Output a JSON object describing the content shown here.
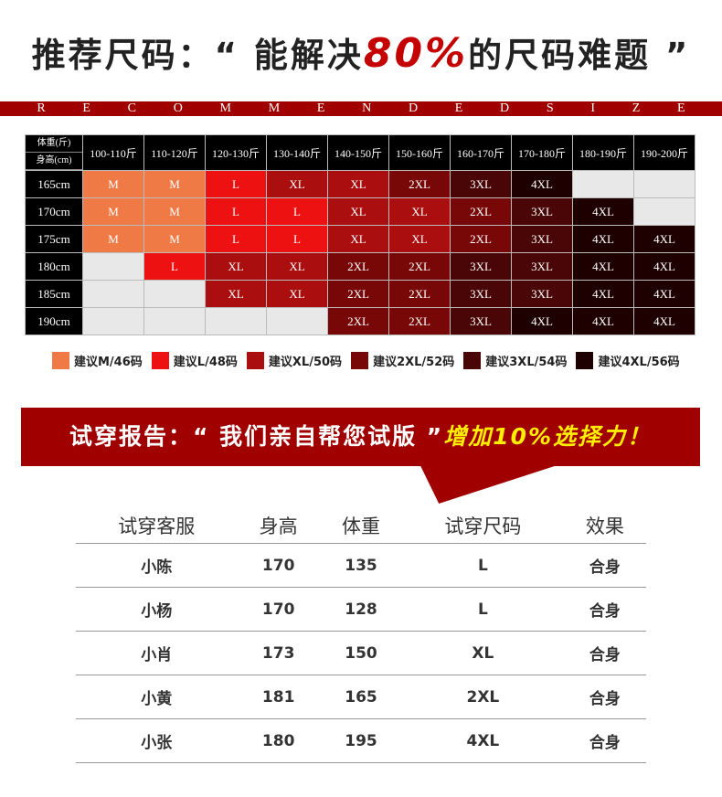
{
  "title": {
    "prefix": "推荐尺码：“ 能解决",
    "highlight": "80%",
    "suffix": "的尺码难题 ”"
  },
  "recommend_letters": [
    "R",
    "E",
    "C",
    "O",
    "M",
    "M",
    "E",
    "N",
    "D",
    "E",
    "D",
    "S",
    "I",
    "Z",
    "E"
  ],
  "size_table": {
    "corner_top": "体重(斤)",
    "corner_bottom": "身高(cm)",
    "weights": [
      "100-110斤",
      "110-120斤",
      "120-130斤",
      "130-140斤",
      "140-150斤",
      "150-160斤",
      "160-170斤",
      "170-180斤",
      "180-190斤",
      "190-200斤"
    ],
    "rows": [
      {
        "height": "165cm",
        "sizes": [
          "M",
          "M",
          "L",
          "XL",
          "XL",
          "2XL",
          "3XL",
          "4XL",
          "",
          ""
        ]
      },
      {
        "height": "170cm",
        "sizes": [
          "M",
          "M",
          "L",
          "L",
          "XL",
          "XL",
          "2XL",
          "3XL",
          "4XL",
          ""
        ]
      },
      {
        "height": "175cm",
        "sizes": [
          "M",
          "M",
          "L",
          "L",
          "XL",
          "XL",
          "2XL",
          "3XL",
          "4XL",
          "4XL"
        ]
      },
      {
        "height": "180cm",
        "sizes": [
          "",
          "L",
          "XL",
          "XL",
          "2XL",
          "2XL",
          "3XL",
          "3XL",
          "4XL",
          "4XL"
        ]
      },
      {
        "height": "185cm",
        "sizes": [
          "",
          "",
          "XL",
          "XL",
          "2XL",
          "2XL",
          "3XL",
          "3XL",
          "4XL",
          "4XL"
        ]
      },
      {
        "height": "190cm",
        "sizes": [
          "",
          "",
          "",
          "",
          "2XL",
          "2XL",
          "3XL",
          "4XL",
          "4XL",
          "4XL"
        ]
      }
    ],
    "colors": {
      "M": "#f07a45",
      "L": "#ee1111",
      "XL": "#aa0e0e",
      "2XL": "#780808",
      "3XL": "#4a0606",
      "4XL": "#1e0000",
      "": "#e8e8e8"
    }
  },
  "legend": [
    {
      "label": "建议M/46码",
      "color": "#f07a45"
    },
    {
      "label": "建议L/48码",
      "color": "#ee1111"
    },
    {
      "label": "建议XL/50码",
      "color": "#aa0e0e"
    },
    {
      "label": "建议2XL/52码",
      "color": "#780808"
    },
    {
      "label": "建议3XL/54码",
      "color": "#4a0606"
    },
    {
      "label": "建议4XL/56码",
      "color": "#1e0000"
    }
  ],
  "banner": {
    "text": "试穿报告：“ 我们亲自帮您试版 ”",
    "highlight": "增加10%选择力！"
  },
  "trial": {
    "headers": [
      "试穿客服",
      "身高",
      "体重",
      "试穿尺码",
      "效果"
    ],
    "rows": [
      [
        "小陈",
        "170",
        "135",
        "L",
        "合身"
      ],
      [
        "小杨",
        "170",
        "128",
        "L",
        "合身"
      ],
      [
        "小肖",
        "173",
        "150",
        "XL",
        "合身"
      ],
      [
        "小黄",
        "181",
        "165",
        "2XL",
        "合身"
      ],
      [
        "小张",
        "180",
        "195",
        "4XL",
        "合身"
      ]
    ]
  }
}
